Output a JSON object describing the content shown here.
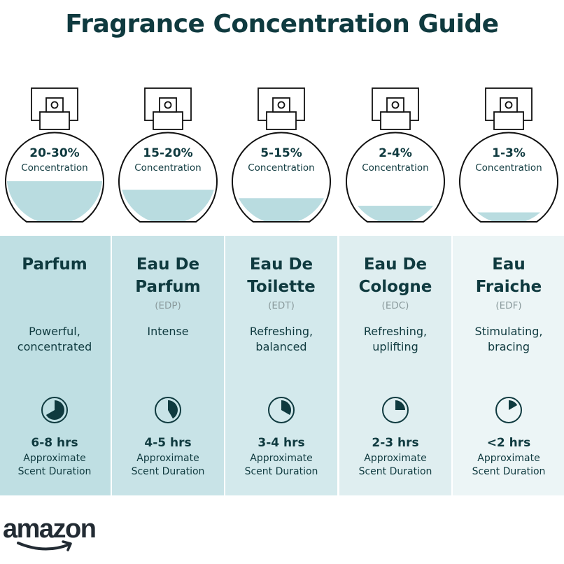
{
  "title": "Fragrance Concentration Guide",
  "colors": {
    "text": "#0f3a3f",
    "liquid": "#b9dce0",
    "abbr": "#8a9a9c"
  },
  "duration_label": [
    "Approximate",
    "Scent Duration"
  ],
  "concentration_label": "Concentration",
  "columns": [
    {
      "concentration": "20-30%",
      "fill_level": 0.43,
      "name": [
        "Parfum"
      ],
      "abbr": "",
      "description": [
        "Powerful,",
        "concentrated"
      ],
      "duration": "6-8 hrs",
      "clock_fraction": 0.667,
      "panel_color": "#bfdfe3"
    },
    {
      "concentration": "15-20%",
      "fill_level": 0.34,
      "name": [
        "Eau De",
        "Parfum"
      ],
      "abbr": "(EDP)",
      "description": [
        "Intense"
      ],
      "duration": "4-5 hrs",
      "clock_fraction": 0.417,
      "panel_color": "#c8e3e7"
    },
    {
      "concentration": "5-15%",
      "fill_level": 0.25,
      "name": [
        "Eau De",
        "Toilette"
      ],
      "abbr": "(EDT)",
      "description": [
        "Refreshing,",
        "balanced"
      ],
      "duration": "3-4 hrs",
      "clock_fraction": 0.333,
      "panel_color": "#d3e9ec"
    },
    {
      "concentration": "2-4%",
      "fill_level": 0.17,
      "name": [
        "Eau De",
        "Cologne"
      ],
      "abbr": "(EDC)",
      "description": [
        "Refreshing,",
        "uplifting"
      ],
      "duration": "2-3 hrs",
      "clock_fraction": 0.25,
      "panel_color": "#dfeef0"
    },
    {
      "concentration": "1-3%",
      "fill_level": 0.1,
      "name": [
        "Eau",
        "Fraiche"
      ],
      "abbr": "(EDF)",
      "description": [
        "Stimulating,",
        "bracing"
      ],
      "duration": "<2 hrs",
      "clock_fraction": 0.167,
      "panel_color": "#ecf5f6"
    }
  ],
  "logo": {
    "text": "amazon"
  }
}
